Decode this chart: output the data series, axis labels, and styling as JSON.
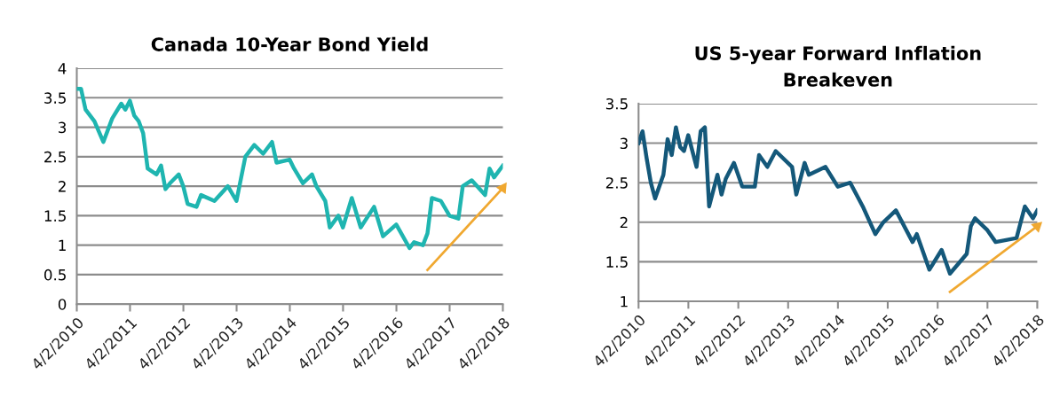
{
  "chart_data": [
    {
      "type": "line",
      "title": "Canada 10-Year Bond Yield",
      "series": [
        {
          "color": "#1fb5b0",
          "x": [
            "2010-04-02",
            "2010-05",
            "2010-06",
            "2010-08",
            "2010-10",
            "2010-12",
            "2011-02",
            "2011-03",
            "2011-04",
            "2011-05",
            "2011-06",
            "2011-07",
            "2011-08",
            "2011-10",
            "2011-11",
            "2011-12",
            "2012-01",
            "2012-03",
            "2012-04",
            "2012-05",
            "2012-07",
            "2012-08",
            "2012-11",
            "2013-02",
            "2013-04",
            "2013-06",
            "2013-08",
            "2013-10",
            "2013-12",
            "2014-01",
            "2014-04",
            "2014-05",
            "2014-07",
            "2014-09",
            "2014-10",
            "2014-12",
            "2015-01",
            "2015-03",
            "2015-04",
            "2015-06",
            "2015-08",
            "2015-11",
            "2016-01",
            "2016-04",
            "2016-07",
            "2016-08",
            "2016-10",
            "2016-11",
            "2016-12",
            "2017-02",
            "2017-04",
            "2017-06",
            "2017-07",
            "2017-09",
            "2017-12",
            "2018-01",
            "2018-02",
            "2018-04-02"
          ],
          "values": [
            3.65,
            3.65,
            3.3,
            3.1,
            2.75,
            3.15,
            3.4,
            3.3,
            3.45,
            3.2,
            3.1,
            2.9,
            2.3,
            2.2,
            2.35,
            1.95,
            2.05,
            2.2,
            2.0,
            1.7,
            1.65,
            1.85,
            1.75,
            2.0,
            1.75,
            2.5,
            2.7,
            2.55,
            2.75,
            2.4,
            2.45,
            2.3,
            2.05,
            2.2,
            2.0,
            1.75,
            1.3,
            1.5,
            1.3,
            1.8,
            1.3,
            1.65,
            1.15,
            1.35,
            0.95,
            1.05,
            1.0,
            1.2,
            1.8,
            1.75,
            1.5,
            1.45,
            2.0,
            2.1,
            1.85,
            2.3,
            2.15,
            2.35
          ]
        },
        {
          "type": "line",
          "color": "#f0a830",
          "x": [
            "2016-11-01",
            "2018-04-02"
          ],
          "values": [
            0.58,
            1.97
          ]
        }
      ],
      "xlim": [
        "2010-04-02",
        "2018-04-02"
      ],
      "xticks": [
        {
          "value": "2010-04-02",
          "label": "4/2/2010"
        },
        {
          "value": "2011-04-02",
          "label": "4/2/2011"
        },
        {
          "value": "2012-04-02",
          "label": "4/2/2012"
        },
        {
          "value": "2013-04-02",
          "label": "4/2/2013"
        },
        {
          "value": "2014-04-02",
          "label": "4/2/2014"
        },
        {
          "value": "2015-04-02",
          "label": "4/2/2015"
        },
        {
          "value": "2016-04-02",
          "label": "4/2/2016"
        },
        {
          "value": "2017-04-02",
          "label": "4/2/2017"
        },
        {
          "value": "2018-04-02",
          "label": "4/2/2018"
        }
      ],
      "ylim": [
        0,
        4
      ],
      "yticks": [
        0,
        0.5,
        1,
        1.5,
        2,
        2.5,
        3,
        3.5,
        4
      ],
      "grid": "y",
      "legend": false,
      "line_style": "solid"
    },
    {
      "type": "line",
      "title": "US 5-year Forward Inflation Breakeven",
      "series": [
        {
          "color": "#14587a",
          "x": [
            "2010-04-02",
            "2010-05",
            "2010-06",
            "2010-07",
            "2010-08",
            "2010-10",
            "2010-11",
            "2010-12",
            "2011-01",
            "2011-02",
            "2011-03",
            "2011-04",
            "2011-06",
            "2011-07",
            "2011-08",
            "2011-09",
            "2011-11",
            "2011-12",
            "2012-01",
            "2012-03",
            "2012-05",
            "2012-08",
            "2012-09",
            "2012-11",
            "2013-01",
            "2013-05",
            "2013-06",
            "2013-08",
            "2013-09",
            "2014-01",
            "2014-04",
            "2014-07",
            "2014-10",
            "2015-01",
            "2015-03",
            "2015-06",
            "2015-10",
            "2015-11",
            "2016-02",
            "2016-05",
            "2016-07",
            "2016-11",
            "2016-12",
            "2017-01",
            "2017-04",
            "2017-06",
            "2017-11",
            "2018-01",
            "2018-03",
            "2018-04-02"
          ],
          "values": [
            3.0,
            3.15,
            2.8,
            2.5,
            2.3,
            2.6,
            3.05,
            2.85,
            3.2,
            2.95,
            2.9,
            3.1,
            2.7,
            3.15,
            3.2,
            2.2,
            2.6,
            2.35,
            2.55,
            2.75,
            2.45,
            2.45,
            2.85,
            2.7,
            2.9,
            2.7,
            2.35,
            2.75,
            2.6,
            2.7,
            2.45,
            2.5,
            2.2,
            1.85,
            2.0,
            2.15,
            1.75,
            1.85,
            1.4,
            1.65,
            1.35,
            1.6,
            1.95,
            2.05,
            1.9,
            1.75,
            1.8,
            2.2,
            2.05,
            2.15
          ]
        },
        {
          "type": "line",
          "color": "#f0a830",
          "x": [
            "2016-07-01",
            "2018-04-02"
          ],
          "values": [
            1.12,
            1.95
          ]
        }
      ],
      "xlim": [
        "2010-04-02",
        "2018-04-02"
      ],
      "xticks": [
        {
          "value": "2010-04-02",
          "label": "4/2/2010"
        },
        {
          "value": "2011-04-02",
          "label": "4/2/2011"
        },
        {
          "value": "2012-04-02",
          "label": "4/2/2012"
        },
        {
          "value": "2013-04-02",
          "label": "4/2/2013"
        },
        {
          "value": "2014-04-02",
          "label": "4/2/2014"
        },
        {
          "value": "2015-04-02",
          "label": "4/2/2015"
        },
        {
          "value": "2016-04-02",
          "label": "4/2/2016"
        },
        {
          "value": "2017-04-02",
          "label": "4/2/2017"
        },
        {
          "value": "2018-04-02",
          "label": "4/2/2018"
        }
      ],
      "ylim": [
        1,
        3.5
      ],
      "yticks": [
        1,
        1.5,
        2,
        2.5,
        3,
        3.5
      ],
      "grid": "y",
      "legend": false,
      "line_style": "solid"
    }
  ]
}
